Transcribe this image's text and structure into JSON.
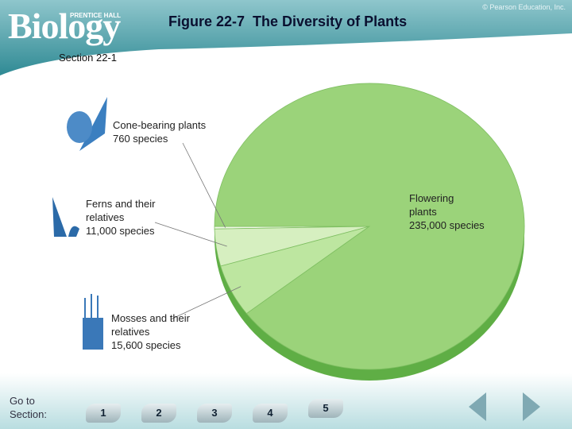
{
  "header": {
    "logo": "Biology",
    "publisher": "PRENTICE HALL",
    "copyright": "© Pearson Education, Inc."
  },
  "chart_data": {
    "type": "pie",
    "title": "Figure 22-7  The Diversity of Plants",
    "subtitle": "Section 22-1",
    "categories": [
      "Cone-bearing plants",
      "Ferns and their relatives",
      "Mosses and their relatives",
      "Flowering plants"
    ],
    "values": [
      760,
      11000,
      15600,
      235000
    ],
    "value_labels": [
      "760 species",
      "11,000 species",
      "15,600 species",
      "235,000 species"
    ],
    "colors": [
      "#eef8e4",
      "#d6efc0",
      "#bde6a0",
      "#9bd37a"
    ]
  },
  "nav": {
    "label": "Go to Section:",
    "buttons": [
      "1",
      "2",
      "3",
      "4",
      "5"
    ]
  }
}
